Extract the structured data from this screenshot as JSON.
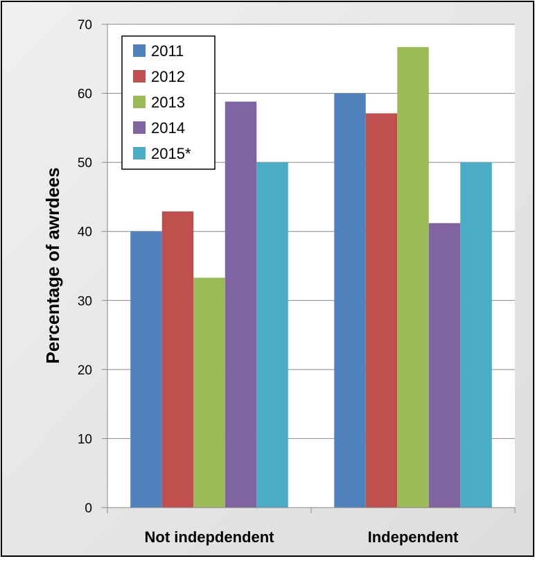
{
  "chart_data": {
    "type": "bar",
    "title": "",
    "xlabel": "",
    "ylabel": "Percentage of awrdees",
    "ylim": [
      0,
      70
    ],
    "yticks": [
      0,
      10,
      20,
      30,
      40,
      50,
      60,
      70
    ],
    "categories": [
      "Not indepdendent",
      "Independent"
    ],
    "series": [
      {
        "name": "2011",
        "color": "#4f81bd",
        "values": [
          40,
          60
        ]
      },
      {
        "name": "2012",
        "color": "#c0504d",
        "values": [
          42.9,
          57.1
        ]
      },
      {
        "name": "2013",
        "color": "#9bbb59",
        "values": [
          33.3,
          66.7
        ]
      },
      {
        "name": "2014",
        "color": "#8064a2",
        "values": [
          58.8,
          41.2
        ]
      },
      {
        "name": "2015*",
        "color": "#4bacc6",
        "values": [
          50,
          50
        ]
      }
    ],
    "grid": true,
    "legend_position": "top-left"
  },
  "style": {
    "background_color": "#e6e6e6",
    "plot_background": "#ffffff",
    "gridline_color": "#868686"
  }
}
